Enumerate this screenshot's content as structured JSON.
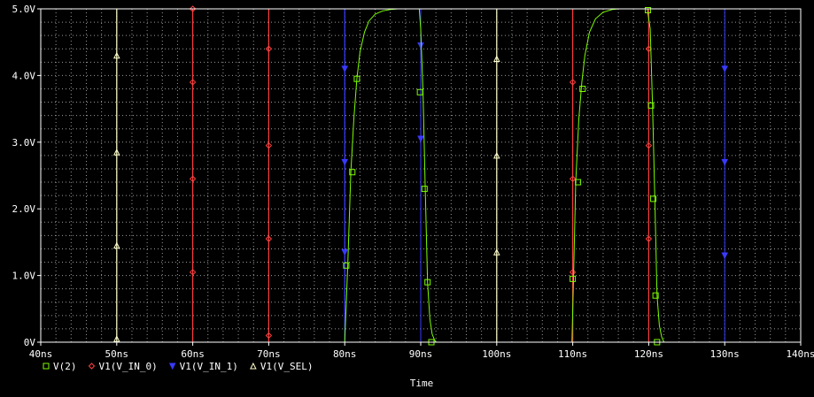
{
  "chart_data": {
    "type": "line",
    "xlabel": "Time",
    "ylabel": "",
    "xlim": [
      40,
      140
    ],
    "ylim": [
      0,
      5
    ],
    "x_unit": "ns",
    "y_unit": "V",
    "x_ticks": [
      40,
      50,
      60,
      70,
      80,
      90,
      100,
      110,
      120,
      130,
      140
    ],
    "x_tick_labels": [
      "40ns",
      "50ns",
      "60ns",
      "70ns",
      "80ns",
      "90ns",
      "100ns",
      "110ns",
      "120ns",
      "130ns",
      "140ns"
    ],
    "y_ticks": [
      0,
      1,
      2,
      3,
      4,
      5
    ],
    "y_tick_labels": [
      "0V",
      "1.0V",
      "2.0V",
      "3.0V",
      "4.0V",
      "5.0V"
    ],
    "grid": true,
    "legend_position": "bottom-left",
    "colors": {
      "background": "#000000",
      "grid": "#9a9a9a",
      "axis": "#ffffff",
      "text": "#ffffff"
    },
    "series": [
      {
        "name": "V(2)",
        "color": "#7cfc00",
        "marker": "square",
        "x": [
          80.0,
          80.4,
          80.8,
          81.2,
          81.6,
          82.0,
          82.6,
          83.2,
          84.0,
          85.0,
          86.0,
          87.0,
          89.8,
          90.0,
          90.3,
          90.6,
          90.9,
          91.2,
          91.5,
          91.8,
          92.0,
          100.0,
          109.9,
          110.1,
          110.4,
          110.8,
          111.2,
          111.6,
          112.2,
          113.0,
          114.0,
          115.2,
          116.0,
          119.8,
          120.2,
          120.5,
          120.8,
          121.1,
          121.4,
          121.7,
          122.0,
          140.0
        ],
        "y": [
          0.0,
          1.15,
          2.55,
          3.35,
          3.95,
          4.35,
          4.65,
          4.82,
          4.92,
          4.97,
          4.99,
          5.0,
          5.0,
          4.7,
          3.75,
          2.3,
          0.9,
          0.35,
          0.12,
          0.04,
          0.0,
          0.0,
          0.0,
          0.95,
          2.4,
          3.35,
          3.9,
          4.3,
          4.65,
          4.85,
          4.95,
          4.99,
          5.0,
          5.0,
          4.7,
          3.55,
          2.15,
          0.7,
          0.25,
          0.08,
          0.0,
          0.0
        ],
        "marker_x": [
          80.2,
          81.0,
          81.6,
          89.9,
          90.5,
          90.9,
          91.4,
          110.0,
          110.7,
          111.3,
          119.9,
          120.3,
          120.6,
          120.9,
          121.1
        ],
        "marker_y": [
          1.15,
          2.55,
          3.95,
          3.75,
          2.3,
          0.9,
          0.0,
          0.95,
          2.4,
          3.8,
          4.98,
          3.55,
          2.15,
          0.7,
          0.0
        ]
      },
      {
        "name": "V1(V_IN_0)",
        "color": "#ff4040",
        "marker": "diamond",
        "x": [
          40,
          60,
          60,
          70,
          70,
          80,
          80,
          90,
          90,
          110,
          110,
          120,
          120,
          140
        ],
        "y": [
          0,
          0,
          5,
          5,
          0,
          0,
          0,
          0,
          0,
          0,
          5,
          5,
          0,
          0
        ],
        "vertical_x": [
          60,
          70,
          110,
          120
        ],
        "marker_x": [
          60,
          60,
          60,
          60,
          70,
          70,
          70,
          70,
          110,
          110,
          110,
          120,
          120,
          120
        ],
        "marker_y": [
          1.05,
          2.45,
          3.9,
          5.0,
          4.4,
          2.95,
          1.55,
          0.1,
          1.05,
          2.45,
          3.9,
          4.4,
          2.95,
          1.55
        ]
      },
      {
        "name": "V1(V_IN_1)",
        "color": "#3a3aff",
        "marker": "triangle-down",
        "x": [
          40,
          40,
          80,
          80,
          90,
          90,
          130,
          130,
          140
        ],
        "y": [
          0,
          5,
          5,
          0,
          0,
          5,
          5,
          5,
          5
        ],
        "vertical_x": [
          40,
          80,
          90,
          130
        ],
        "marker_x": [
          80,
          80,
          80,
          90,
          90,
          130,
          130,
          130
        ],
        "marker_y": [
          1.35,
          2.7,
          4.1,
          4.45,
          3.05,
          1.3,
          2.7,
          4.1
        ]
      },
      {
        "name": "V1(V_SEL)",
        "color": "#ffffcc",
        "marker": "triangle-up",
        "x": [
          40,
          50,
          50,
          100,
          100,
          140
        ],
        "y": [
          0,
          0,
          5,
          5,
          0,
          0
        ],
        "vertical_x": [
          50,
          100
        ],
        "marker_x": [
          50,
          50,
          50,
          50,
          100,
          100,
          100
        ],
        "marker_y": [
          0.05,
          1.45,
          2.85,
          4.3,
          1.35,
          2.8,
          4.25
        ]
      }
    ]
  }
}
